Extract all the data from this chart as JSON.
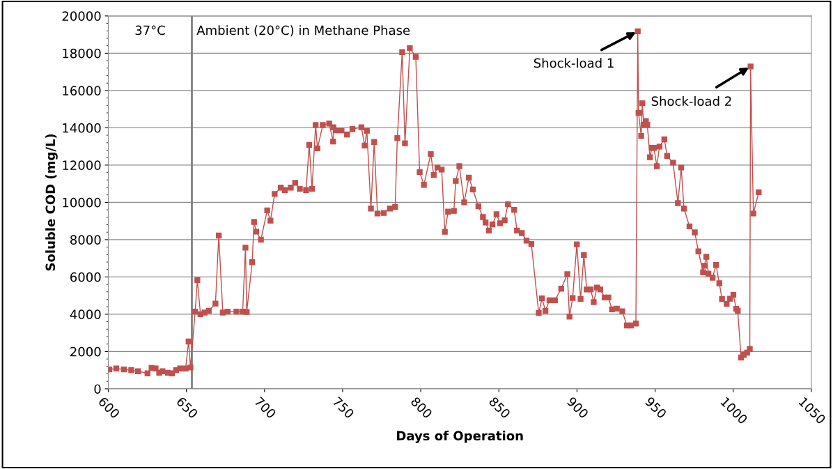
{
  "chart_data": {
    "type": "line",
    "xlabel": "Days of Operation",
    "ylabel": "Soluble COD (mg/L)",
    "xlim": [
      600,
      1050
    ],
    "xticks": [
      600,
      650,
      700,
      750,
      800,
      850,
      900,
      950,
      1000,
      1050
    ],
    "ylim": [
      0,
      20000
    ],
    "yticks": [
      0,
      2000,
      4000,
      6000,
      8000,
      10000,
      12000,
      14000,
      16000,
      18000,
      20000
    ],
    "grid": "y",
    "marker": "square",
    "line_style": "solid",
    "legend": false,
    "ref_lines": [
      {
        "axis": "x",
        "value": 653.5,
        "color": "#808080"
      }
    ],
    "annotations": [
      "37°C",
      "Ambient (20°C) in Methane Phase",
      {
        "text": "Shock-load 1",
        "x": 938.9,
        "y": 19180
      },
      {
        "text": "Shock-load 2",
        "x": 1011.1,
        "y": 17290
      }
    ],
    "series": [
      {
        "color": "#c0504d",
        "x": [
          600.7,
          605.1,
          610,
          614.7,
          619,
          625.1,
          627.7,
          630.3,
          632.6,
          634.7,
          638.2,
          640.8,
          643.4,
          646,
          649.5,
          651.4,
          652.6,
          655.6,
          657,
          659,
          661.6,
          664.3,
          668.6,
          670.7,
          673.3,
          676.4,
          682,
          686,
          687.8,
          688.6,
          692.1,
          693.3,
          694.7,
          697.7,
          701.7,
          703.8,
          706.5,
          710.4,
          713,
          716.8,
          719.6,
          722.6,
          726.6,
          728.6,
          730.4,
          732.7,
          733.9,
          737.3,
          741.4,
          743.9,
          744.1,
          745.8,
          749.3,
          752.8,
          756.3,
          762,
          764.1,
          765.5,
          768.1,
          770.2,
          772.3,
          776.3,
          780.3,
          783.6,
          785,
          788.1,
          789.9,
          793,
          796.8,
          799.3,
          802,
          806.4,
          808.3,
          810.7,
          813.4,
          815.4,
          817.5,
          821.2,
          822.4,
          824.7,
          827.8,
          830.8,
          833.4,
          836.9,
          839.8,
          841.5,
          843.6,
          845.9,
          848.5,
          850.8,
          853.7,
          855.8,
          859.8,
          861.6,
          864.7,
          867.7,
          870.8,
          875.5,
          877.6,
          879.8,
          882.4,
          885.9,
          889.9,
          893.8,
          895.2,
          897.2,
          899.9,
          902.3,
          904.4,
          906.2,
          908.8,
          910.7,
          912.8,
          914.9,
          917.7,
          920.1,
          922.4,
          925.5,
          929,
          931.9,
          934.5,
          937.7,
          938.9,
          939.4,
          941.1,
          941.8,
          942.7,
          944.1,
          945,
          946.7,
          947.9,
          949.3,
          951.1,
          952.8,
          955.9,
          957.7,
          961.5,
          964.6,
          966.7,
          968.5,
          972,
          975.4,
          977.7,
          980.7,
          981.5,
          982.8,
          984.1,
          986.8,
          989,
          991.1,
          992.8,
          995.8,
          998,
          1000.1,
          1001.9,
          1002.9,
          1005,
          1006.8,
          1008.9,
          1010.6,
          1011.1,
          1012.9,
          1016.3
        ],
        "values": [
          1040,
          1090,
          1040,
          1000,
          940,
          830,
          1120,
          1090,
          860,
          940,
          860,
          830,
          1000,
          1090,
          1090,
          2540,
          1140,
          4140,
          5830,
          4000,
          4090,
          4190,
          4570,
          8220,
          4090,
          4140,
          4140,
          4140,
          7570,
          4120,
          6790,
          8950,
          8430,
          8000,
          9570,
          9020,
          10450,
          10790,
          10660,
          10790,
          11050,
          10730,
          10660,
          13080,
          10730,
          14150,
          12900,
          14150,
          14230,
          13260,
          14030,
          13860,
          13860,
          13640,
          13930,
          14030,
          13050,
          13840,
          9670,
          13240,
          9400,
          9430,
          9670,
          9760,
          13450,
          18060,
          13170,
          18270,
          17810,
          11630,
          10940,
          12590,
          11470,
          11870,
          11760,
          8420,
          9500,
          9540,
          11150,
          11940,
          10000,
          11330,
          10690,
          9790,
          9210,
          8920,
          8490,
          8820,
          9360,
          8880,
          9040,
          9900,
          9600,
          8490,
          8350,
          7950,
          7770,
          4070,
          4850,
          4190,
          4750,
          4750,
          5370,
          6150,
          3870,
          4870,
          7750,
          4820,
          7180,
          5330,
          5330,
          4650,
          5430,
          5330,
          4900,
          4900,
          4260,
          4300,
          4160,
          3400,
          3400,
          3500,
          19180,
          14800,
          13560,
          15320,
          14170,
          14360,
          14170,
          12420,
          12920,
          12920,
          11940,
          12990,
          13380,
          12490,
          12130,
          9960,
          11870,
          9670,
          8710,
          8390,
          7370,
          6250,
          6600,
          7080,
          6180,
          5960,
          6640,
          5660,
          4820,
          4550,
          4830,
          5040,
          4290,
          4190,
          1680,
          1820,
          1940,
          2140,
          17290,
          9400,
          10540
        ]
      }
    ]
  }
}
